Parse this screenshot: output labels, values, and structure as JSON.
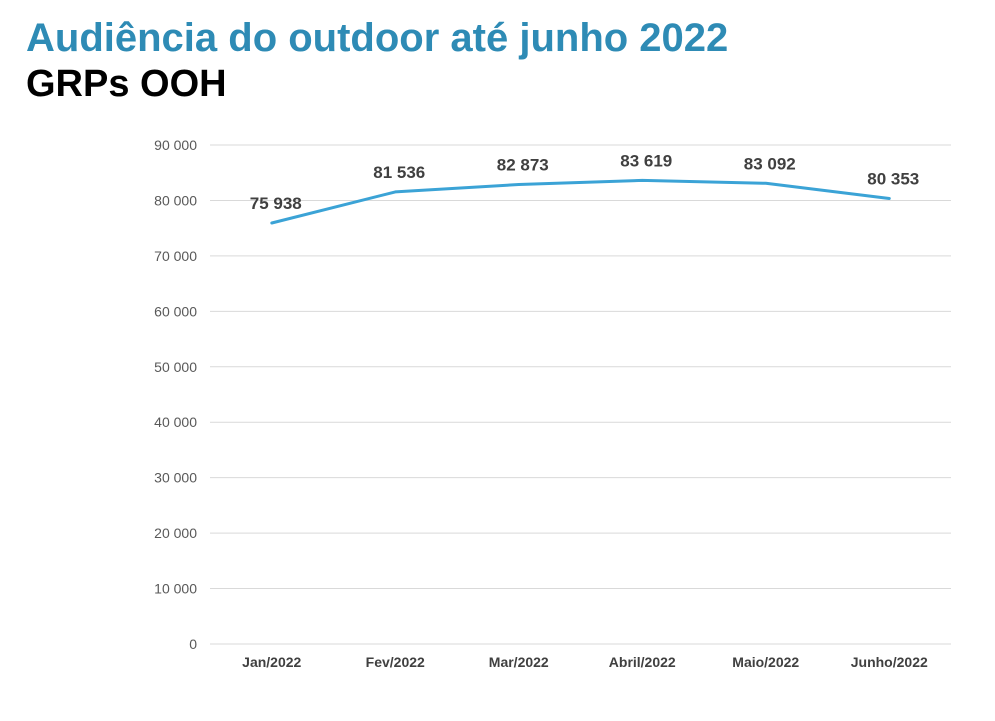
{
  "header": {
    "title": "Audiência do outdoor até junho 2022",
    "subtitle": "GRPs OOH"
  },
  "chart_data": {
    "type": "line",
    "categories": [
      "Jan/2022",
      "Fev/2022",
      "Mar/2022",
      "Abril/2022",
      "Maio/2022",
      "Junho/2022"
    ],
    "series": [
      {
        "values": [
          75938,
          81536,
          82873,
          83619,
          83092,
          80353
        ],
        "labels": [
          "75 938",
          "81 536",
          "82 873",
          "83 619",
          "83 092",
          "80 353"
        ],
        "color": "#3BA3D6"
      }
    ],
    "ylim": [
      0,
      90000
    ],
    "yticks": [
      0,
      10000,
      20000,
      30000,
      40000,
      50000,
      60000,
      70000,
      80000,
      90000
    ],
    "ytick_labels": [
      "0",
      "10 000",
      "20 000",
      "30 000",
      "40 000",
      "50 000",
      "60 000",
      "70 000",
      "80 000",
      "90 000"
    ],
    "grid": true,
    "gridColor": "#D9D9D9",
    "legend": "none"
  }
}
